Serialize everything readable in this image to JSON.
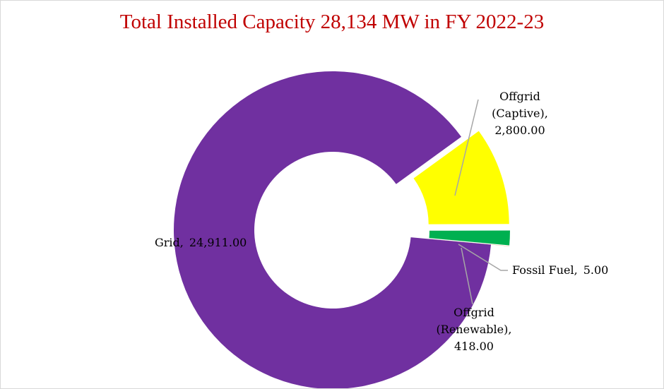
{
  "chart_data": {
    "type": "pie",
    "title": "Total Installed Capacity 28,134 MW in FY 2022-23",
    "categories": [
      "Offgrid (Captive),",
      "Offgrid (Renewable),",
      "Fossil Fuel,",
      "Grid,"
    ],
    "values": [
      2800,
      418,
      5,
      24911
    ],
    "value_labels": [
      "2,800.00",
      "418.00",
      "5.00",
      "24,911.00"
    ],
    "colors": [
      "#ffff00",
      "#00b050",
      "#ed7d31",
      "#7030a0"
    ]
  }
}
